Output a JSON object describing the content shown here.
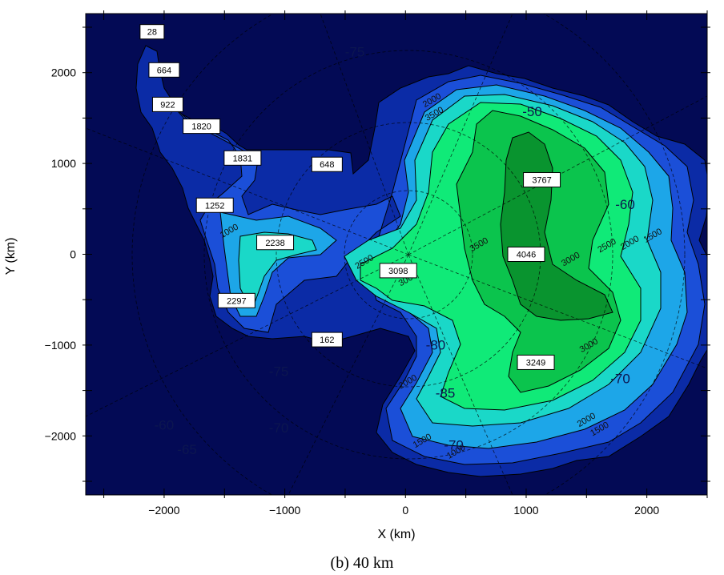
{
  "map": {
    "xlabel": "X (km)",
    "ylabel": "Y (km)",
    "caption": "(b) 40 km",
    "xlim": [
      -2650,
      2500
    ],
    "ylim": [
      -2650,
      2650
    ],
    "x_ticks": [
      -2000,
      -1000,
      0,
      1000,
      2000
    ],
    "x_tick_labels": [
      "−2000",
      "−1000",
      "0",
      "1000",
      "2000"
    ],
    "y_ticks": [
      2000,
      1000,
      0,
      -1000,
      -2000
    ],
    "y_tick_labels": [
      "2000",
      "1000",
      "0",
      "−1000",
      "−2000"
    ],
    "colors": {
      "ocean": "#030a55",
      "band_1": "#0b2ba6",
      "band_2": "#1b4fd8",
      "band_3": "#1da6e8",
      "band_4": "#1ad8c8",
      "band_5": "#10ea78",
      "band_6": "#0bc44d",
      "band_7": "#09942f",
      "contour_line": "#000000",
      "graticule": "#000000"
    },
    "elevation_labels": [
      {
        "text": "28",
        "x": -2100,
        "y": 2450
      },
      {
        "text": "664",
        "x": -2000,
        "y": 2030
      },
      {
        "text": "922",
        "x": -1970,
        "y": 1650
      },
      {
        "text": "1820",
        "x": -1690,
        "y": 1410
      },
      {
        "text": "1831",
        "x": -1350,
        "y": 1060
      },
      {
        "text": "648",
        "x": -650,
        "y": 990
      },
      {
        "text": "1252",
        "x": -1580,
        "y": 540
      },
      {
        "text": "2238",
        "x": -1080,
        "y": 130
      },
      {
        "text": "3098",
        "x": -60,
        "y": -180
      },
      {
        "text": "3767",
        "x": 1130,
        "y": 820
      },
      {
        "text": "4046",
        "x": 1000,
        "y": 0
      },
      {
        "text": "2297",
        "x": -1400,
        "y": -510
      },
      {
        "text": "162",
        "x": -650,
        "y": -940
      },
      {
        "text": "3249",
        "x": 1080,
        "y": -1190
      }
    ],
    "contour_labels": [
      {
        "text": "2000",
        "x": 230,
        "y": 1670
      },
      {
        "text": "3500",
        "x": 250,
        "y": 1520
      },
      {
        "text": "3500",
        "x": 620,
        "y": 80
      },
      {
        "text": "2500",
        "x": -330,
        "y": -110
      },
      {
        "text": "3000",
        "x": 30,
        "y": -300
      },
      {
        "text": "3000",
        "x": 1380,
        "y": -80
      },
      {
        "text": "2500",
        "x": 1680,
        "y": 70
      },
      {
        "text": "2000",
        "x": 1870,
        "y": 100
      },
      {
        "text": "1500",
        "x": 2060,
        "y": 180
      },
      {
        "text": "3000",
        "x": 1530,
        "y": -1030
      },
      {
        "text": "2000",
        "x": 1510,
        "y": -1850
      },
      {
        "text": "1500",
        "x": 1620,
        "y": -1950
      },
      {
        "text": "1000",
        "x": 430,
        "y": -2200
      },
      {
        "text": "1500",
        "x": 150,
        "y": -2080
      },
      {
        "text": "1000",
        "x": -1450,
        "y": 230
      },
      {
        "text": "2000",
        "x": 30,
        "y": -1430
      }
    ],
    "latitude_labels": [
      {
        "text": "-75",
        "x": -420,
        "y": 2180
      },
      {
        "text": "-50",
        "x": 1050,
        "y": 1520
      },
      {
        "text": "-60",
        "x": 1820,
        "y": 500
      },
      {
        "text": "-80",
        "x": 250,
        "y": -1050
      },
      {
        "text": "-85",
        "x": 330,
        "y": -1580
      },
      {
        "text": "-70",
        "x": 1780,
        "y": -1420
      },
      {
        "text": "-70",
        "x": -1050,
        "y": -1960
      },
      {
        "text": "-75",
        "x": -1050,
        "y": -1340
      },
      {
        "text": "-60",
        "x": -2000,
        "y": -1930
      },
      {
        "text": "-65",
        "x": -1810,
        "y": -2200
      },
      {
        "text": "-70",
        "x": 400,
        "y": -2150
      }
    ]
  }
}
